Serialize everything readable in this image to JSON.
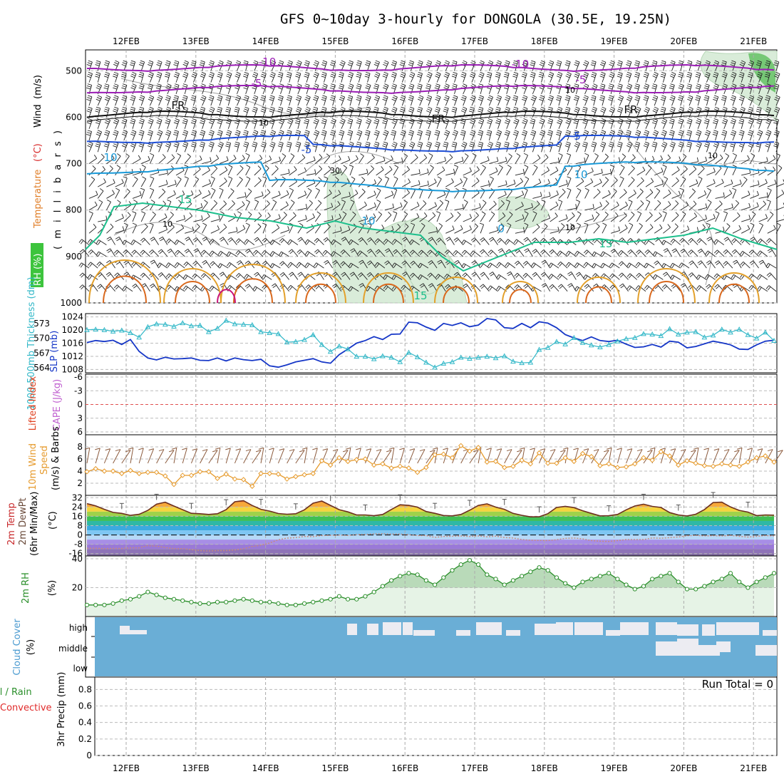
{
  "title": "GFS 0~10day 3-hourly for DONGOLA (30.5E, 19.25N)",
  "colors": {
    "purple": "#9b1fb5",
    "black": "#111111",
    "blue": "#1f4fd6",
    "cyan": "#1a9ad8",
    "teal": "#1dbf8c",
    "orange": "#e3a02a",
    "darkorange": "#d9681d",
    "magenta": "#c8147a",
    "slp": "#1536c7",
    "thick": "#33b8c8",
    "wind10": "#e69b2e",
    "rh": "#2b8f2b",
    "cloud": "#6aaed6",
    "gridgray": "#aaaaaa"
  },
  "chart_data": [
    {
      "type": "line",
      "panel": "upper-air",
      "ylabel_parts": [
        "RH (%)",
        "Temperature",
        "(°C)",
        "Wind",
        "(m/s)"
      ],
      "y_title": "( m i l l i b a r s )",
      "yticks": [
        500,
        600,
        700,
        800,
        900,
        1000
      ],
      "ylim": [
        1000,
        455
      ],
      "x_dates": [
        "12FEB",
        "13FEB",
        "14FEB",
        "15FEB",
        "16FEB",
        "17FEB",
        "18FEB",
        "19FEB",
        "20FEB",
        "21FEB"
      ],
      "isotherm_labels": [
        {
          "text": "-10",
          "color": "purple"
        },
        {
          "text": "-10",
          "color": "purple"
        },
        {
          "text": "-5",
          "color": "purple"
        },
        {
          "text": "-5",
          "color": "purple"
        },
        {
          "text": "FR",
          "color": "black"
        },
        {
          "text": "FR",
          "color": "black"
        },
        {
          "text": "FR",
          "color": "black"
        },
        {
          "text": "-5",
          "color": "blue"
        },
        {
          "text": "5",
          "color": "blue"
        },
        {
          "text": "10",
          "color": "cyan"
        },
        {
          "text": "10",
          "color": "cyan"
        },
        {
          "text": "10",
          "color": "cyan"
        },
        {
          "text": "0",
          "color": "cyan"
        },
        {
          "text": "15",
          "color": "teal"
        },
        {
          "text": "15",
          "color": "teal"
        },
        {
          "text": "15",
          "color": "teal"
        }
      ],
      "rh_labels": [
        "10",
        "10",
        "10",
        "10",
        "30",
        "10"
      ]
    },
    {
      "type": "line",
      "panel": "slp-thickness",
      "ylabel_left": "1000-500mb Thickness (dm)",
      "ylabel_right": "SLP (mb)",
      "thickness_ticks": [
        564,
        567,
        570,
        573
      ],
      "slp_ticks": [
        1008,
        1012,
        1016,
        1020,
        1024
      ],
      "series": [
        {
          "name": "SLP (mb)",
          "values": [
            1016.2,
            1016.8,
            1016.5,
            1016.9,
            1015.6,
            1017.1,
            1013.5,
            1011.5,
            1010.9,
            1011.7,
            1011.2,
            1011.3,
            1011.5,
            1010.8,
            1010.7,
            1011.5,
            1010.6,
            1011.5,
            1011.0,
            1010.7,
            1011.1,
            1009.1,
            1008.7,
            1009.4,
            1010.3,
            1010.8,
            1011.3,
            1010.3,
            1009.9,
            1012.5,
            1014.2,
            1016.0,
            1016.8,
            1018.0,
            1017.1,
            1018.7,
            1018.8,
            1022.4,
            1022.2,
            1020.9,
            1019.9,
            1022.0,
            1021.4,
            1022.2,
            1021.0,
            1021.5,
            1023.5,
            1023.1,
            1020.7,
            1020.5,
            1022.0,
            1020.7,
            1022.5,
            1022.1,
            1020.7,
            1018.6,
            1017.6,
            1016.8,
            1017.9,
            1016.8,
            1016.5,
            1016.9,
            1015.7,
            1014.7,
            1014.9,
            1015.6,
            1014.8,
            1016.6,
            1016.3,
            1014.6,
            1015.0,
            1015.8,
            1016.6,
            1016.1,
            1015.5,
            1014.2,
            1014.1,
            1015.5,
            1016.6,
            1016.9
          ]
        },
        {
          "name": "1000-500mb Thickness (dm)",
          "values": [
            571.7,
            571.8,
            571.7,
            571.4,
            571.6,
            571.1,
            570.2,
            572.3,
            572.9,
            572.8,
            572.4,
            573.1,
            572.5,
            572.6,
            571.3,
            572.0,
            573.6,
            572.9,
            572.8,
            572.7,
            571.3,
            571.1,
            570.9,
            569.2,
            569.3,
            569.7,
            570.7,
            568.7,
            567.3,
            568.4,
            567.8,
            566.3,
            566.3,
            565.8,
            566.4,
            566.1,
            565.2,
            567.1,
            566.2,
            565.1,
            564.1,
            564.9,
            565.2,
            566.1,
            565.9,
            566.1,
            566.3,
            566.0,
            566.4,
            565.3,
            565.0,
            565.1,
            567.7,
            568.1,
            569.3,
            568.8,
            570.1,
            569.1,
            568.6,
            568.2,
            568.7,
            569.4,
            569.9,
            570.1,
            570.9,
            570.8,
            570.5,
            571.9,
            570.8,
            571.2,
            571.3,
            570.2,
            570.6,
            571.8,
            571.2,
            571.8,
            570.7,
            570.0,
            571.2,
            569.5
          ]
        }
      ]
    },
    {
      "type": "line",
      "panel": "lifted-index-cape",
      "ylabel_left": "Lifted Index",
      "ylabel_right": "CAPE (J/kg)",
      "yticks_labels": [
        "-6",
        "-3",
        "0",
        "3",
        "6"
      ],
      "values": []
    },
    {
      "type": "line",
      "panel": "wind10m",
      "ylabel": "10m Wind Speed (m/s) & Barbs",
      "ylabel_parts": [
        "10m Wind",
        "Speed",
        "(m/s) & Barbs"
      ],
      "yticks": [
        2,
        4,
        6,
        8
      ],
      "ylim": [
        0,
        10
      ],
      "series": [
        {
          "name": "10m Wind Speed (m/s)",
          "values": [
            3.9,
            4.4,
            4.0,
            4.0,
            3.6,
            4.1,
            3.6,
            3.8,
            3.8,
            3.2,
            1.8,
            3.3,
            3.3,
            3.9,
            3.9,
            2.8,
            3.5,
            2.7,
            2.6,
            1.5,
            3.6,
            3.6,
            3.5,
            2.7,
            3.1,
            3.4,
            3.6,
            5.7,
            5.0,
            6.2,
            5.6,
            5.9,
            6.0,
            5.0,
            5.2,
            4.5,
            4.8,
            4.5,
            3.8,
            4.6,
            6.7,
            6.8,
            6.2,
            8.2,
            7.3,
            7.9,
            5.5,
            5.6,
            4.6,
            4.8,
            5.8,
            5.2,
            7.0,
            5.3,
            5.3,
            6.2,
            5.6,
            6.9,
            6.4,
            4.9,
            5.2,
            4.6,
            4.7,
            5.2,
            6.2,
            5.8,
            7.2,
            6.5,
            5.0,
            5.7,
            5.3,
            4.9,
            4.8,
            5.2,
            5.0,
            4.8,
            5.5,
            6.2,
            6.5,
            5.5
          ]
        }
      ]
    },
    {
      "type": "area",
      "panel": "temperature",
      "ylabel_parts": [
        "2m Temp",
        "2m DewPt",
        "(6hr Min/Max)",
        "(°C)"
      ],
      "yticks": [
        32,
        24,
        16,
        8,
        0,
        -8,
        -16
      ],
      "ylim": [
        -18,
        34
      ],
      "series": [
        {
          "name": "2m Temp",
          "values": [
            26.9,
            25.0,
            22.0,
            19.4,
            18.5,
            16.8,
            17.7,
            21.1,
            26.4,
            28.1,
            24.8,
            21.7,
            18.6,
            18.2,
            17.6,
            18.2,
            21.7,
            28.5,
            29.5,
            25.3,
            22.0,
            20.5,
            18.4,
            17.8,
            18.2,
            21.6,
            27.3,
            29.1,
            25.4,
            21.7,
            19.8,
            17.2,
            17.2,
            16.5,
            17.6,
            21.9,
            25.9,
            25.4,
            23.9,
            20.1,
            18.6,
            16.7,
            16.4,
            17.6,
            21.2,
            25.4,
            26.7,
            23.9,
            22.0,
            18.5,
            16.9,
            15.5,
            15.6,
            18.3,
            23.6,
            24.6,
            23.5,
            20.8,
            18.5,
            16.4,
            16.5,
            17.6,
            21.6,
            24.9,
            26.4,
            24.5,
            23.6,
            19.2,
            17.2,
            16.3,
            17.8,
            21.8,
            27.9,
            28.1,
            24.0,
            21.1,
            19.6,
            16.6,
            17.2,
            17.0
          ]
        },
        {
          "name": "2m DewPt",
          "values": [
            -11.4,
            -11.4,
            -11.7,
            -11.5,
            -11.6,
            -11.1,
            -11.1,
            -9.1,
            -9.6,
            -10.8,
            -11.7,
            -11.7,
            -12.6,
            -13.4,
            -13.8,
            -13.4,
            -13.4,
            -12.9,
            -11.8,
            -9.9,
            -8.8,
            -6.9,
            -4.1,
            -2.7,
            -2.3,
            -1.3,
            -1.4,
            -0.5,
            -0.3,
            -0.1,
            -0.4,
            0.3,
            0.5,
            0.9,
            1.1,
            0.7,
            0.8,
            0.3,
            -0.5,
            -0.5,
            -2.1,
            -1.3,
            -1.1,
            -0.9,
            -1.3,
            -0.8,
            -1.6,
            -1.0,
            -2.2,
            -2.6,
            -3.9,
            -4.5,
            -4.7,
            -4.8,
            -4.1,
            -2.9,
            -2.6,
            -3.4,
            -4.8,
            -5.4,
            -5.6,
            -4.8,
            -3.9,
            -4.0,
            -3.9,
            -2.5,
            -2.8,
            -2.3,
            -1.7,
            -0.7,
            -0.4,
            -0.8,
            -0.6,
            -0.9,
            -0.4,
            -1.2,
            -1.8,
            -1.2,
            -0.5,
            -0.8
          ]
        }
      ]
    },
    {
      "type": "area",
      "panel": "rh2m",
      "ylabel_parts": [
        "2m RH",
        "(%)"
      ],
      "yticks": [
        20,
        40
      ],
      "ylim": [
        0,
        42
      ],
      "series": [
        {
          "name": "2m RH",
          "values": [
            8,
            8,
            8,
            9,
            11,
            12,
            14,
            17,
            15,
            13,
            12,
            11,
            10,
            9,
            9,
            10,
            10,
            11,
            12,
            11,
            10,
            10,
            9,
            8,
            8,
            9,
            10,
            11,
            12,
            14,
            12,
            12,
            14,
            17,
            21,
            25,
            28,
            30,
            29,
            25,
            22,
            27,
            32,
            36,
            39,
            36,
            29,
            26,
            22,
            25,
            28,
            31,
            34,
            32,
            27,
            23,
            20,
            24,
            26,
            28,
            30,
            26,
            22,
            19,
            21,
            26,
            28,
            30,
            24,
            19,
            19,
            21,
            24,
            26,
            30,
            24,
            20,
            24,
            27,
            30
          ]
        }
      ]
    },
    {
      "type": "heatmap",
      "panel": "cloud-cover",
      "ylabel_parts": [
        "Cloud Cover",
        "(%)"
      ],
      "levels": [
        "high",
        "middle",
        "low"
      ]
    },
    {
      "type": "bar",
      "panel": "precip",
      "ylabel_parts": [
        "Total / Rain",
        "Convective",
        "3hr Precip (mm)"
      ],
      "yticks": [
        0,
        0.2,
        0.4,
        0.6,
        0.8
      ],
      "ylim": [
        0,
        0.95
      ],
      "values": [],
      "annotation": "Run Total = 0"
    }
  ]
}
